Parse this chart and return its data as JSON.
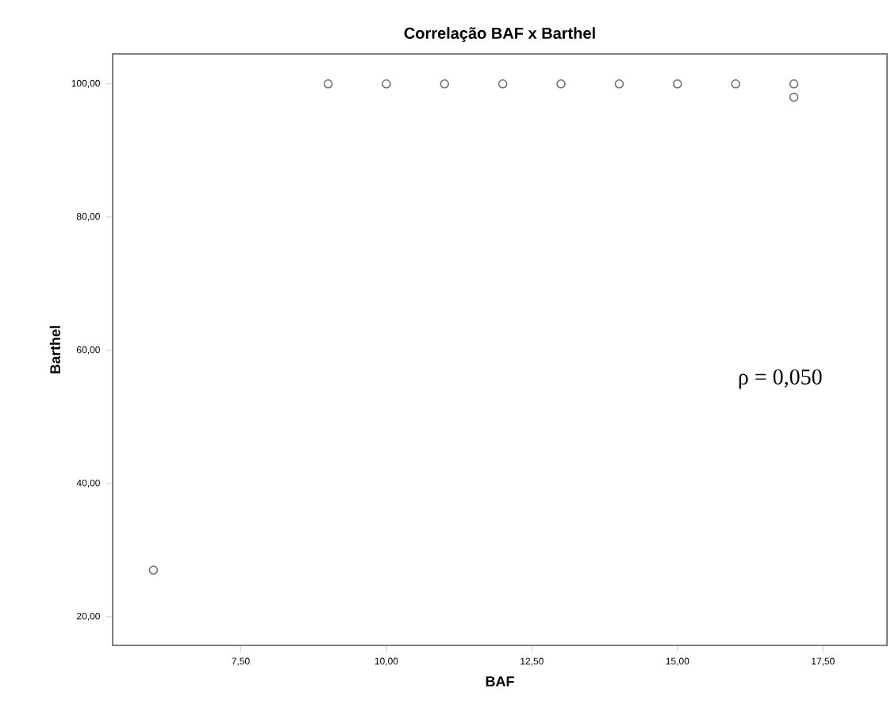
{
  "chart_data": {
    "type": "scatter",
    "title": "Correlação BAF x Barthel",
    "xlabel": "BAF",
    "ylabel": "Barthel",
    "annotations": [
      "ρ = 0,050"
    ],
    "x": [
      6,
      9,
      10,
      11,
      12,
      13,
      14,
      15,
      16,
      17,
      17
    ],
    "values": [
      27,
      100,
      100,
      100,
      100,
      100,
      100,
      100,
      100,
      100,
      98
    ],
    "color": "#707070",
    "marker": "circle",
    "grid": false,
    "xlim": [
      5.3,
      18.6
    ],
    "ylim": [
      15.7,
      104.5
    ],
    "xticks": [
      {
        "value": 7.5,
        "label": "7,50"
      },
      {
        "value": 10,
        "label": "10,00"
      },
      {
        "value": 12.5,
        "label": "12,50"
      },
      {
        "value": 15,
        "label": "15,00"
      },
      {
        "value": 17.5,
        "label": "17,50"
      }
    ],
    "yticks": [
      {
        "value": 20,
        "label": "20,00"
      },
      {
        "value": 40,
        "label": "40,00"
      },
      {
        "value": 60,
        "label": "60,00"
      },
      {
        "value": 80,
        "label": "80,00"
      },
      {
        "value": 100,
        "label": "100,00"
      }
    ]
  }
}
